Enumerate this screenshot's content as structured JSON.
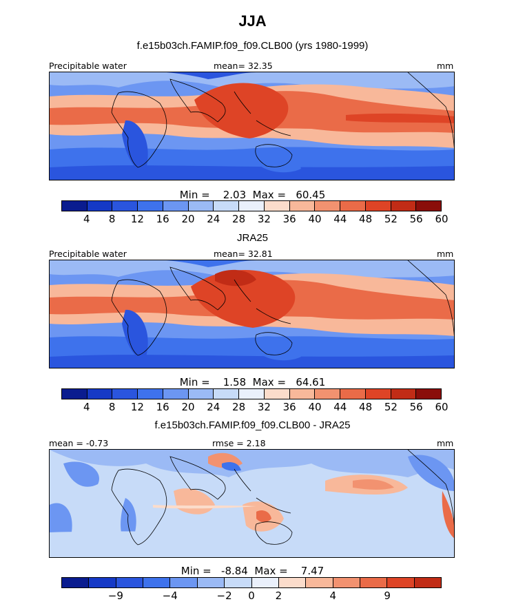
{
  "title": "JJA",
  "panels": [
    {
      "subtitle": "f.e15b03ch.FAMIP.f09_f09.CLB00 (yrs 1980-1999)",
      "left_label": "Precipitable water",
      "center_label": "mean=  32.35",
      "right_label": "mm",
      "minmax": "Min =    2.03  Max =   60.45",
      "min": 2.03,
      "max": 60.45,
      "mean": 32.35,
      "colorbar": "abs",
      "ticks": [
        "4",
        "8",
        "12",
        "16",
        "20",
        "24",
        "28",
        "32",
        "36",
        "40",
        "44",
        "48",
        "52",
        "56",
        "60"
      ]
    },
    {
      "subtitle": "JRA25",
      "left_label": "Precipitable water",
      "center_label": "mean=  32.81",
      "right_label": "mm",
      "minmax": "Min =    1.58  Max =   64.61",
      "min": 1.58,
      "max": 64.61,
      "mean": 32.81,
      "colorbar": "abs",
      "ticks": [
        "4",
        "8",
        "12",
        "16",
        "20",
        "24",
        "28",
        "32",
        "36",
        "40",
        "44",
        "48",
        "52",
        "56",
        "60"
      ]
    },
    {
      "subtitle": "f.e15b03ch.FAMIP.f09_f09.CLB00 - JRA25",
      "left_label": "mean = -0.73",
      "center_label": "rmse =   2.18",
      "right_label": "mm",
      "minmax": "Min =   -8.84  Max =    7.47",
      "min": -8.84,
      "max": 7.47,
      "mean": -0.73,
      "rmse": 2.18,
      "colorbar": "diff",
      "ticks": [
        "−9",
        "−4",
        "−2",
        "0",
        "2",
        "4",
        "9"
      ]
    }
  ],
  "colorbars": {
    "abs": [
      "#0a1c8f",
      "#1539c6",
      "#2a55de",
      "#3e72ec",
      "#6c96f2",
      "#9bbaf5",
      "#c7dbf8",
      "#eaf0fb",
      "#fbdccb",
      "#f8b89a",
      "#f29270",
      "#ea6b48",
      "#de4426",
      "#c12c16",
      "#8a0e0a"
    ],
    "diff": [
      "#0a1c8f",
      "#1539c6",
      "#2a55de",
      "#3e72ec",
      "#6c96f2",
      "#9bbaf5",
      "#c7dbf8",
      "#eaf0fb",
      "#fbdccb",
      "#f8b89a",
      "#f29270",
      "#ea6b48",
      "#de4426",
      "#c12c16"
    ]
  }
}
